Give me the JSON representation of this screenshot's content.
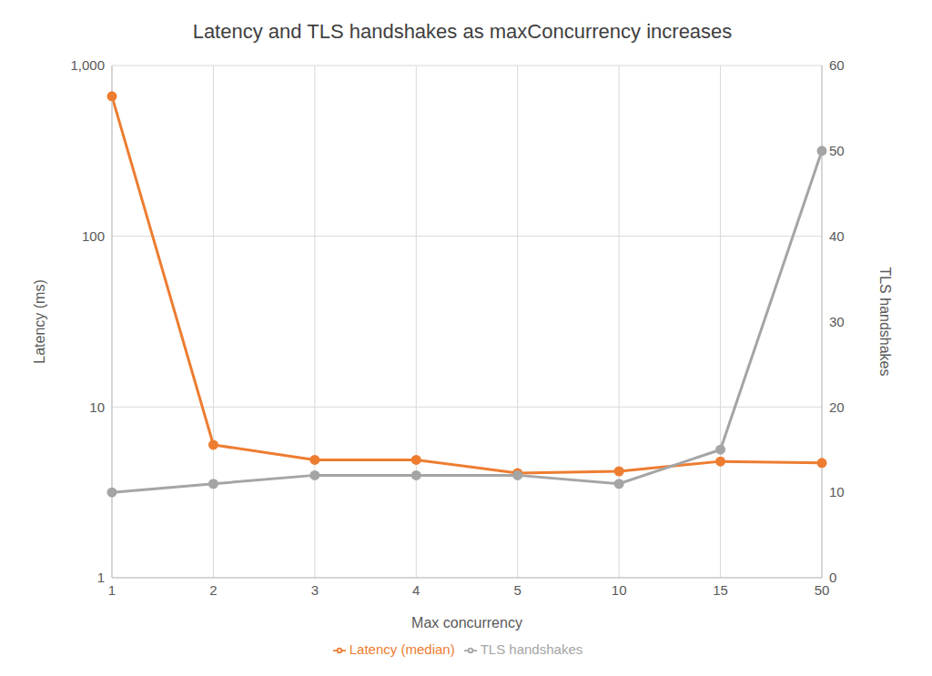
{
  "chart_data": {
    "type": "line",
    "title": "Latency and TLS handshakes as maxConcurrency increases",
    "categories": [
      "1",
      "2",
      "3",
      "4",
      "5",
      "10",
      "15",
      "50"
    ],
    "x_label": "Max concurrency",
    "y_label": "Latency (ms)",
    "y2_label": "TLS handshakes",
    "ylim": [
      1,
      1000
    ],
    "yticks": [
      1,
      10,
      100,
      {
        "value": 1000,
        "label": "1,000"
      }
    ],
    "y2lim": [
      0,
      60
    ],
    "y2ticks": [
      0,
      10,
      20,
      30,
      40,
      50,
      60
    ],
    "log": "y",
    "grid": true,
    "legend": "bottom",
    "series": [
      {
        "name": "Latency (median)",
        "color": "#ED7D31",
        "marker": "circle",
        "values": [
          660,
          6,
          4.9,
          4.9,
          4.1,
          4.2,
          4.8,
          4.7
        ]
      },
      {
        "name": "TLS handshakes",
        "color": "#A5A5A5",
        "marker": "circle",
        "axis": "y2",
        "values": [
          10,
          11,
          12,
          12,
          12,
          11,
          15,
          50
        ]
      }
    ]
  }
}
